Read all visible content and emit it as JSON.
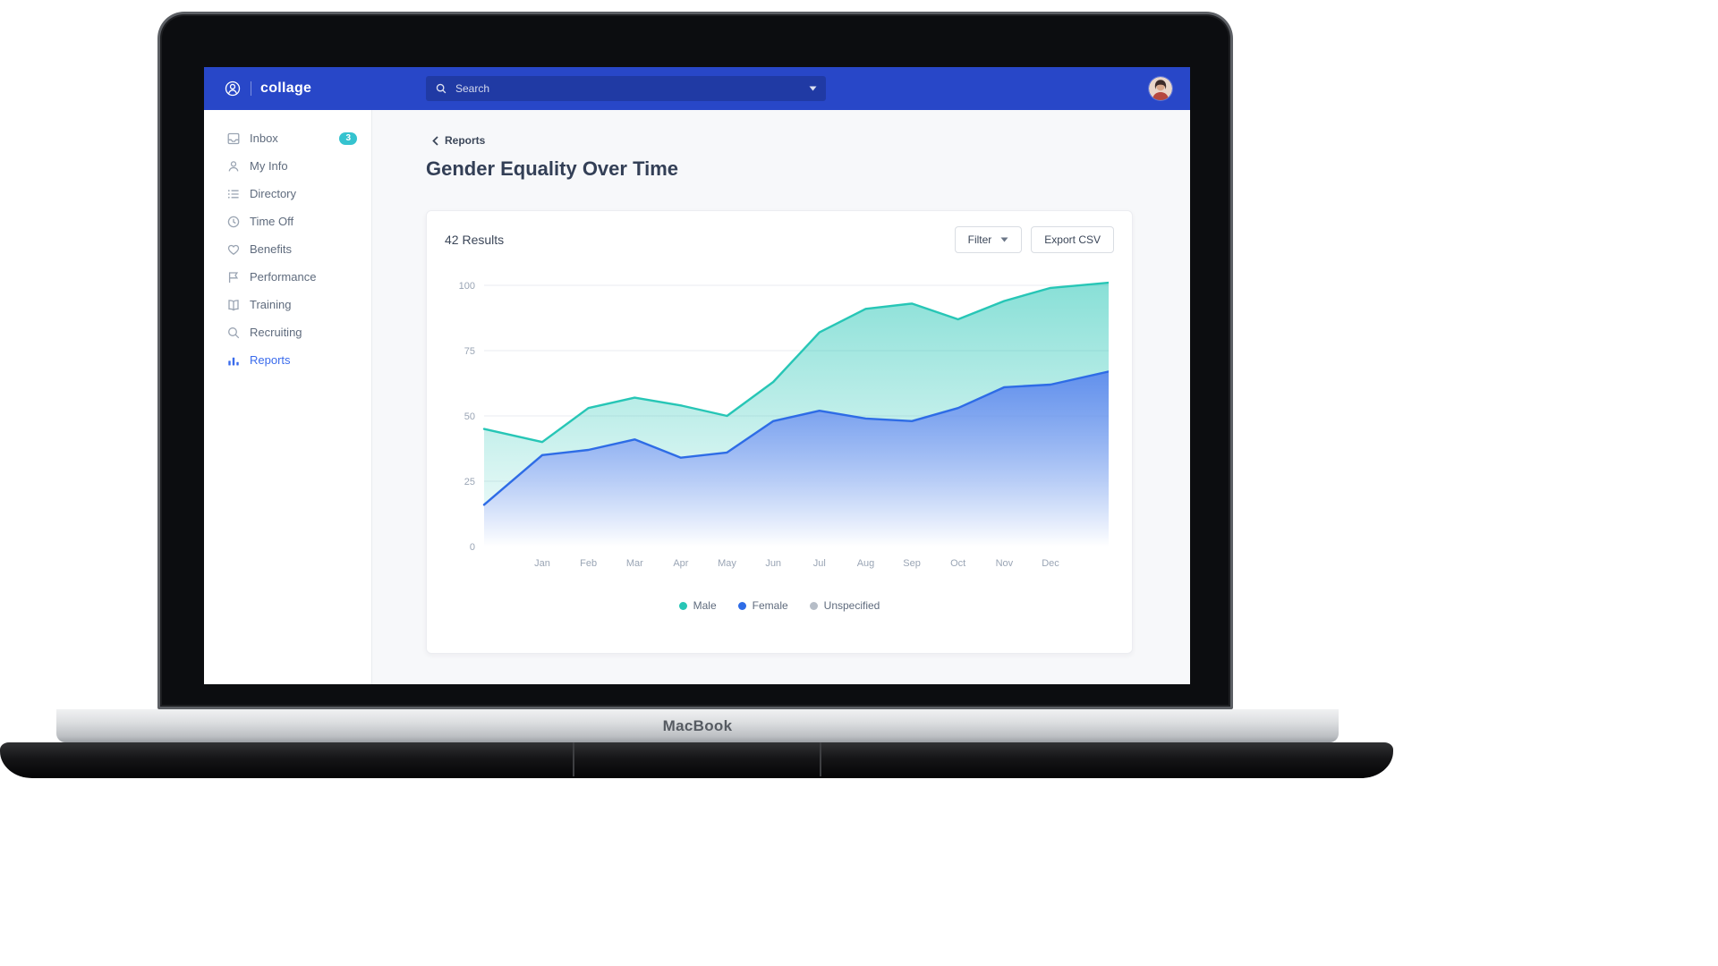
{
  "device": {
    "label": "MacBook"
  },
  "header": {
    "brand": "collage",
    "search": {
      "placeholder": "Search"
    }
  },
  "sidebar": {
    "items": [
      {
        "label": "Inbox",
        "icon": "inbox-icon",
        "badge": "3",
        "active": false
      },
      {
        "label": "My Info",
        "icon": "user-icon",
        "active": false
      },
      {
        "label": "Directory",
        "icon": "list-icon",
        "active": false
      },
      {
        "label": "Time Off",
        "icon": "clock-icon",
        "active": false
      },
      {
        "label": "Benefits",
        "icon": "heart-icon",
        "active": false
      },
      {
        "label": "Performance",
        "icon": "flag-icon",
        "active": false
      },
      {
        "label": "Training",
        "icon": "book-icon",
        "active": false
      },
      {
        "label": "Recruiting",
        "icon": "search-icon",
        "active": false
      },
      {
        "label": "Reports",
        "icon": "chart-icon",
        "active": true
      }
    ]
  },
  "main": {
    "breadcrumb": "Reports",
    "title": "Gender Equality Over Time",
    "card": {
      "results": "42 Results",
      "filter_label": "Filter",
      "export_label": "Export CSV"
    }
  },
  "colors": {
    "header_blue": "#2847c8",
    "active_blue": "#3a6bec",
    "badge_teal": "#35c3cf",
    "male_teal": "#27c6b6",
    "female_blue": "#2e6ce6",
    "unspecified_gray": "#b6bdc7"
  },
  "chart_data": {
    "type": "area",
    "title": "Gender Equality Over Time",
    "x_labels": [
      "Jan",
      "Feb",
      "Mar",
      "Apr",
      "May",
      "Jun",
      "Jul",
      "Aug",
      "Sep",
      "Oct",
      "Nov",
      "Dec"
    ],
    "y_ticks": [
      0,
      25,
      50,
      75,
      100
    ],
    "ylim": [
      0,
      100
    ],
    "grid": true,
    "legend_position": "bottom",
    "edge_points": "first and last values in each series are unlabeled points at the left and right chart edges",
    "series": [
      {
        "name": "Male",
        "color": "#27c6b6",
        "values": [
          45,
          40,
          53,
          57,
          54,
          50,
          63,
          82,
          91,
          93,
          87,
          94,
          99,
          101
        ]
      },
      {
        "name": "Female",
        "color": "#2e6ce6",
        "values": [
          16,
          35,
          37,
          41,
          34,
          36,
          48,
          52,
          49,
          48,
          53,
          61,
          62,
          67
        ]
      },
      {
        "name": "Unspecified",
        "color": "#b6bdc7",
        "values": [
          0,
          0,
          0,
          0,
          0,
          0,
          0,
          0,
          0,
          0,
          0,
          0,
          0,
          0
        ]
      }
    ]
  }
}
